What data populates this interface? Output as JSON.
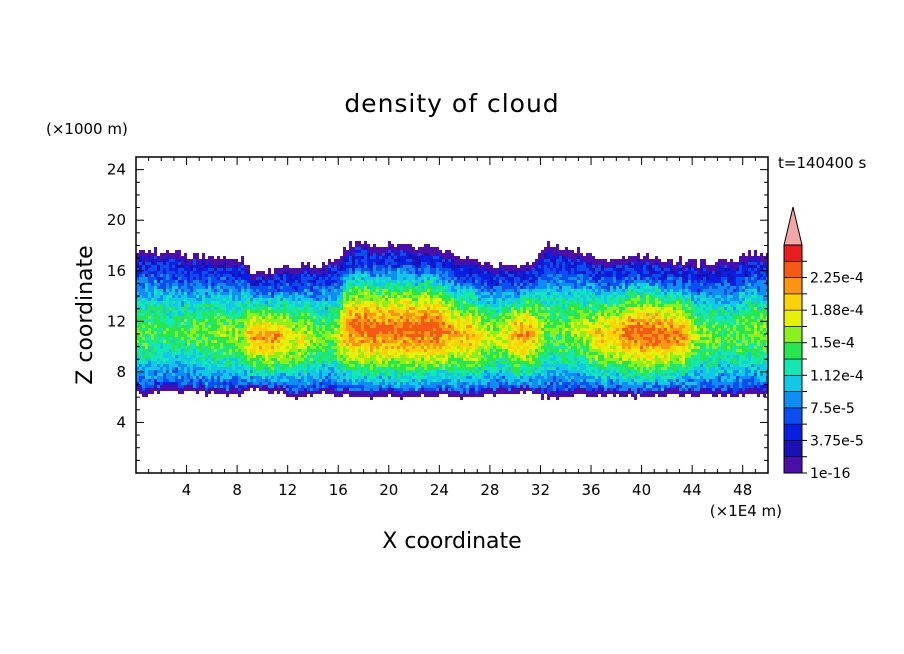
{
  "chart_data": {
    "type": "heatmap",
    "title": "density of cloud",
    "xlabel": "X coordinate",
    "ylabel": "Z coordinate",
    "x_unit": "(×1E4 m)",
    "y_unit": "(×1000 m)",
    "time_label": "t=140400 s",
    "xlim": [
      0,
      50
    ],
    "ylim": [
      0,
      25
    ],
    "x_ticks": [
      "4",
      "8",
      "12",
      "16",
      "20",
      "24",
      "28",
      "32",
      "36",
      "40",
      "44",
      "48"
    ],
    "y_ticks": [
      "4",
      "8",
      "12",
      "16",
      "20",
      "24"
    ],
    "cloud_base_z": 6,
    "cloud_top_z": 18,
    "colorbar": {
      "levels": [
        1e-16,
        1.875e-05,
        3.75e-05,
        5.625e-05,
        7.5e-05,
        9.375e-05,
        0.0001125,
        0.00013125,
        0.00015,
        0.00016875,
        0.0001875,
        0.00020625,
        0.000225,
        0.00024375
      ],
      "labels": [
        "1e-16",
        "3.75e-5",
        "7.5e-5",
        "1.12e-4",
        "1.5e-4",
        "1.88e-4",
        "2.25e-4"
      ],
      "colors": [
        "#4b0fa8",
        "#1a10b4",
        "#0a1ee0",
        "#0a4ef0",
        "#0f8cf5",
        "#12c8e6",
        "#14e6b4",
        "#28e650",
        "#8cf01e",
        "#e6f00a",
        "#fad20a",
        "#fa9614",
        "#f55a14",
        "#e61e1e"
      ],
      "extend_color": "#f4a5a5"
    },
    "columns": [
      {
        "x": 1,
        "core": 0.3,
        "top": 17.6,
        "base": 6.2
      },
      {
        "x": 3,
        "core": 0.25,
        "top": 17.4,
        "base": 6.4
      },
      {
        "x": 5,
        "core": 0.35,
        "top": 17.2,
        "base": 6.3
      },
      {
        "x": 7,
        "core": 0.4,
        "top": 17.0,
        "base": 6.1
      },
      {
        "x": 10.5,
        "core": 0.8,
        "top": 16.0,
        "base": 6.5
      },
      {
        "x": 13,
        "core": 0.55,
        "top": 16.4,
        "base": 6.0
      },
      {
        "x": 15,
        "core": 0.35,
        "top": 16.6,
        "base": 6.2
      },
      {
        "x": 17.5,
        "core": 0.95,
        "top": 18.2,
        "base": 6.0
      },
      {
        "x": 20,
        "core": 0.95,
        "top": 18.0,
        "base": 6.0
      },
      {
        "x": 23,
        "core": 1.0,
        "top": 17.8,
        "base": 6.1
      },
      {
        "x": 26,
        "core": 0.75,
        "top": 17.2,
        "base": 6.0
      },
      {
        "x": 28.5,
        "core": 0.45,
        "top": 16.4,
        "base": 6.2
      },
      {
        "x": 30.5,
        "core": 0.85,
        "top": 16.6,
        "base": 6.3
      },
      {
        "x": 33,
        "core": 0.35,
        "top": 18.0,
        "base": 6.0
      },
      {
        "x": 35,
        "core": 0.45,
        "top": 17.6,
        "base": 6.2
      },
      {
        "x": 37,
        "core": 0.7,
        "top": 16.8,
        "base": 6.1
      },
      {
        "x": 40,
        "core": 0.95,
        "top": 17.2,
        "base": 6.0
      },
      {
        "x": 42.5,
        "core": 0.9,
        "top": 16.8,
        "base": 6.1
      },
      {
        "x": 45,
        "core": 0.4,
        "top": 16.6,
        "base": 6.2
      },
      {
        "x": 47,
        "core": 0.3,
        "top": 16.8,
        "base": 6.0
      },
      {
        "x": 49,
        "core": 0.4,
        "top": 17.4,
        "base": 6.1
      }
    ]
  }
}
